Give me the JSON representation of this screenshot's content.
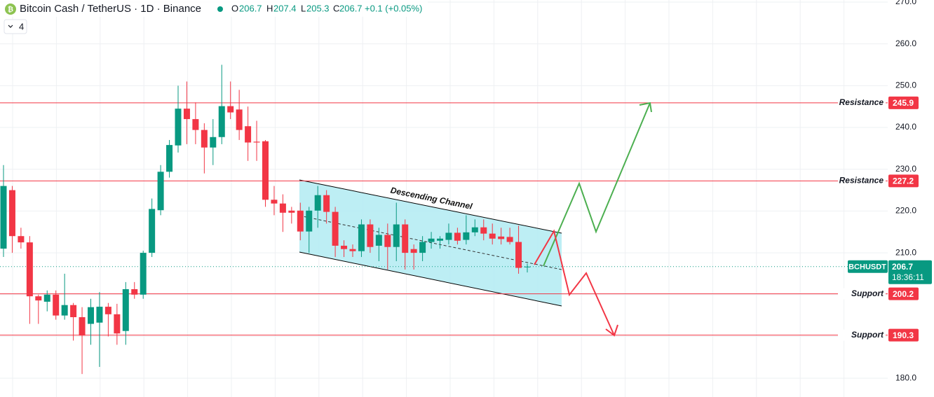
{
  "chart_data": {
    "type": "candlestick",
    "header": {
      "symbol": "Bitcoin Cash / TetherUS · 1D · Binance",
      "o_label": "O",
      "open": 206.7,
      "h_label": "H",
      "high": 207.4,
      "l_label": "L",
      "low": 205.3,
      "c_label": "C",
      "close": 206.7,
      "change": "+0.1 (+0.05%)",
      "indicators": 4
    },
    "categories": [
      null,
      null,
      null,
      null,
      null,
      null,
      null,
      null,
      null,
      null,
      null,
      null,
      null,
      null,
      null,
      null,
      null,
      null,
      null,
      null,
      null,
      null,
      null,
      null,
      null,
      null,
      null,
      null,
      null,
      null,
      null,
      null,
      null,
      null,
      null,
      null,
      null,
      null,
      null,
      null,
      null,
      null,
      null,
      null,
      null,
      null,
      null,
      null,
      null,
      null,
      null,
      null,
      null,
      null,
      null,
      null,
      null,
      null,
      null,
      null,
      null
    ],
    "open": [
      211,
      225,
      214,
      212.5,
      199.6,
      198.3,
      200,
      195,
      197.5,
      194.6,
      193,
      193.3,
      197.1,
      195.3,
      191.3,
      201.3,
      200,
      210,
      220.2,
      229.4,
      235.7,
      244.5,
      242,
      239.4,
      235.2,
      237.7,
      245.1,
      244.3,
      240.3,
      236.6,
      236.7,
      222.7,
      221.8,
      220.1,
      220.1,
      215.1,
      220.1,
      223.8,
      219.8,
      211.7,
      210.9,
      210.4,
      216.8,
      211.7,
      214.3,
      211.4,
      216.8,
      210.9,
      210,
      212.6,
      212.9,
      213.1,
      214.8,
      213.1,
      214.9,
      216.1,
      214.6,
      213.9,
      213.8,
      212.6,
      206.7
    ],
    "high": [
      231,
      226,
      216,
      214,
      200,
      201,
      201,
      205,
      198,
      197,
      199,
      200.6,
      198,
      197.8,
      203,
      203,
      210.5,
      223,
      231,
      237,
      250,
      251,
      246,
      241,
      242,
      255,
      251,
      249,
      245,
      241.6,
      237,
      226,
      224,
      221,
      222,
      221,
      226,
      225,
      221,
      213,
      212,
      218,
      218,
      216,
      217,
      222,
      218,
      212,
      214,
      215,
      214,
      217,
      216,
      219,
      218,
      218,
      217,
      216,
      216,
      216.5,
      207.4
    ],
    "low": [
      209,
      210,
      211,
      193,
      193,
      196,
      194,
      194,
      189,
      181,
      188,
      182.7,
      190,
      188,
      188,
      199,
      199,
      209,
      219,
      228,
      234,
      236,
      236,
      229,
      231,
      236,
      242,
      237,
      232,
      232,
      221,
      219,
      215,
      217,
      213,
      210,
      216,
      217,
      209,
      209,
      209,
      209,
      210,
      208,
      206,
      208,
      206,
      206,
      208,
      211,
      211,
      212,
      212,
      212,
      214,
      213,
      212,
      212,
      212,
      205,
      205.3
    ],
    "close": [
      226,
      214,
      212.5,
      199.6,
      198.6,
      200,
      195,
      197.5,
      194.6,
      190.2,
      197,
      197.1,
      195.3,
      190.7,
      201.3,
      200,
      210,
      220.5,
      229.4,
      235.8,
      244.5,
      242,
      239.4,
      235.2,
      237.7,
      245.1,
      243.6,
      239.4,
      236.4,
      236.4,
      222.7,
      221.8,
      219.6,
      219.6,
      215.1,
      220.1,
      223.8,
      219.8,
      211.7,
      210.9,
      210.4,
      216.8,
      211.4,
      214.3,
      211.4,
      216.8,
      210,
      210,
      212.6,
      213.4,
      213.4,
      214.8,
      212.9,
      214.9,
      216.1,
      214.6,
      213.4,
      213.3,
      212.6,
      206.4,
      206.7
    ],
    "up_color": "#089981",
    "down_color": "#f23645",
    "ylim": [
      175.5,
      270.5
    ],
    "yticks": [
      {
        "value": 180,
        "label": "180.0"
      },
      {
        "value": 190,
        "label": "190.0"
      },
      {
        "value": 200,
        "label": "200.0"
      },
      {
        "value": 210,
        "label": "210.0"
      },
      {
        "value": 220,
        "label": "220.0"
      },
      {
        "value": 230,
        "label": "230.0"
      },
      {
        "value": 240,
        "label": "240.0"
      },
      {
        "value": 250,
        "label": "250.0"
      },
      {
        "value": 260,
        "label": "260.0"
      },
      {
        "value": 270,
        "label": "270.0"
      }
    ],
    "grid": true,
    "levels": [
      {
        "label": "Resistance",
        "value": 245.9
      },
      {
        "label": "Resistance",
        "value": 227.2
      },
      {
        "label": "Support",
        "value": 200.2
      },
      {
        "label": "Support",
        "value": 190.3
      }
    ],
    "level_color": "#f23645",
    "last_price": {
      "symbol": "BCHUSDT",
      "value": 206.7,
      "countdown": "18:36:11"
    },
    "annotation": "Descending Channel"
  }
}
